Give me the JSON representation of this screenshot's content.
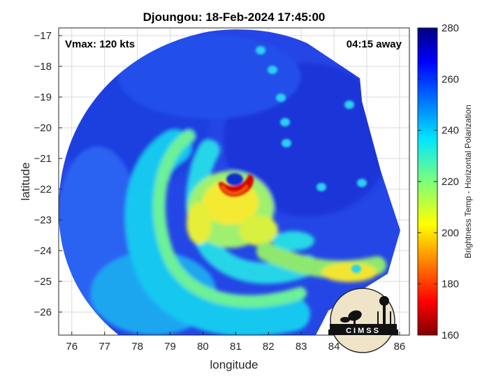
{
  "chart_data": {
    "type": "heatmap",
    "title": "Djoungou: 18-Feb-2024 17:45:00",
    "xlabel": "longitude",
    "ylabel": "latitude",
    "xlim": [
      75.6,
      86.3
    ],
    "ylim": [
      -26.75,
      -16.75
    ],
    "xticks": [
      76,
      77,
      78,
      79,
      80,
      81,
      82,
      83,
      84,
      85,
      86
    ],
    "yticks": [
      -17,
      -18,
      -19,
      -20,
      -21,
      -22,
      -23,
      -24,
      -25,
      -26
    ],
    "grid": true,
    "annotations": {
      "vmax": "Vmax: 120 kts",
      "away": "04:15 away"
    },
    "colorbar": {
      "label": "Brightness Temp - Horizontal Polarization",
      "range": [
        160,
        280
      ],
      "ticks": [
        160,
        180,
        200,
        220,
        240,
        260,
        280
      ],
      "colormap": "jet",
      "placement": "right"
    },
    "eye_center": {
      "lon": 81.15,
      "lat": -21.95
    },
    "logo_text": "CIMSS"
  },
  "colors": {
    "background_low": "#1f37d8",
    "eyewall": "#c80000",
    "grid": "#d9d9d9"
  }
}
